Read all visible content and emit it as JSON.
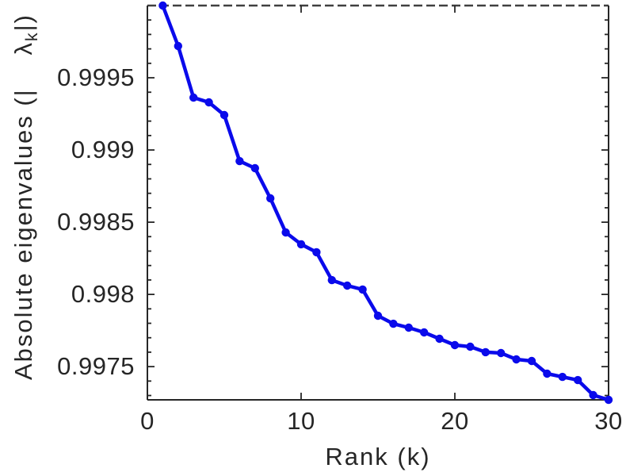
{
  "chart_data": {
    "type": "line",
    "title": "",
    "xlabel": "Rank (k)",
    "ylabel": "Absolute eigenvalues (|λk|)",
    "ylabel_parts": {
      "prefix": "Absolute eigenvalues (|",
      "symbol": "λ",
      "subscript": "k",
      "suffix": "|)"
    },
    "x": [
      1,
      2,
      3,
      4,
      5,
      6,
      7,
      8,
      9,
      10,
      11,
      12,
      13,
      14,
      15,
      16,
      17,
      18,
      19,
      20,
      21,
      22,
      23,
      24,
      25,
      26,
      27,
      28,
      29,
      30
    ],
    "y": [
      1.0,
      0.99972,
      0.999363,
      0.99933,
      0.999242,
      0.998923,
      0.998874,
      0.998665,
      0.998429,
      0.998347,
      0.998292,
      0.998099,
      0.998061,
      0.998034,
      0.997852,
      0.997797,
      0.99777,
      0.997737,
      0.997693,
      0.997649,
      0.997638,
      0.9976,
      0.997594,
      0.99755,
      0.997539,
      0.997451,
      0.997429,
      0.997407,
      0.997303,
      0.99727
    ],
    "xlim": [
      0,
      30
    ],
    "ylim": [
      0.99727,
      1.0
    ],
    "x_ticks": {
      "values": [
        0,
        10,
        20,
        30
      ],
      "labels": [
        "0",
        "10",
        "20",
        "30"
      ]
    },
    "x_top_tick_values": [
      10,
      20
    ],
    "y_ticks": {
      "values": [
        0.9975,
        0.998,
        0.9985,
        0.999,
        0.9995
      ],
      "labels": [
        "0.9975",
        "0.998",
        "0.9985",
        "0.999",
        "0.9995"
      ]
    },
    "y_minor_step": 0.0001,
    "reference_line": {
      "y": 1.0,
      "style": "dashed",
      "color": "#404040"
    },
    "line_color": "#0a0aeb",
    "marker": "circle",
    "axis_color": "#262626",
    "grid": false,
    "legend": null
  }
}
